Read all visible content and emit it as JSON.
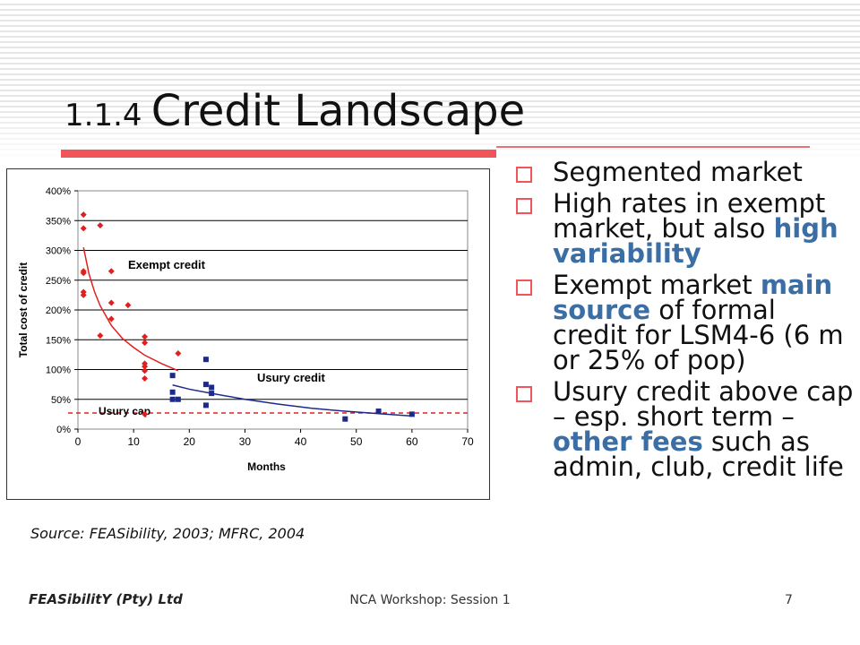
{
  "slide": {
    "title_number": "1.1.4",
    "title_text": "Credit Landscape",
    "bullets": [
      {
        "parts": [
          {
            "text": "Segmented market",
            "hl": false
          }
        ]
      },
      {
        "parts": [
          {
            "text": "High rates in exempt market, but also ",
            "hl": false
          },
          {
            "text": "high variability",
            "hl": true
          }
        ]
      },
      {
        "parts": [
          {
            "text": "Exempt market ",
            "hl": false
          },
          {
            "text": "main source",
            "hl": true
          },
          {
            "text": " of formal credit for LSM4-6 (6 m or 25% of pop)",
            "hl": false
          }
        ]
      },
      {
        "parts": [
          {
            "text": "Usury credit above cap – esp. short term – ",
            "hl": false
          },
          {
            "text": "other fees",
            "hl": true
          },
          {
            "text": " such as admin, club, credit life",
            "hl": false
          }
        ]
      }
    ],
    "source": "Source: FEASibility, 2003; MFRC, 2004",
    "footer_left": "FEASibilitY (Pty) Ltd",
    "footer_center": "NCA Workshop: Session 1",
    "page_number": "7"
  },
  "colors": {
    "accent_red": "#f0555a",
    "highlight_blue": "#3a6ea5",
    "exempt_series": "#e0201f",
    "usury_series": "#1c2a8c"
  },
  "chart_data": {
    "type": "scatter",
    "xlabel": "Months",
    "ylabel": "Total cost of credit",
    "xlim": [
      0,
      70
    ],
    "ylim": [
      0,
      400
    ],
    "x_ticks": [
      "0",
      "10",
      "20",
      "30",
      "40",
      "50",
      "60",
      "70"
    ],
    "y_ticks": [
      "0%",
      "50%",
      "100%",
      "150%",
      "200%",
      "250%",
      "300%",
      "350%",
      "400%"
    ],
    "grid": "horizontal",
    "series": [
      {
        "name": "Exempt credit",
        "marker": "diamond",
        "color": "#e0201f",
        "points": [
          [
            1,
            360
          ],
          [
            1,
            337
          ],
          [
            1,
            265
          ],
          [
            1,
            262
          ],
          [
            1,
            230
          ],
          [
            1,
            225
          ],
          [
            4,
            342
          ],
          [
            4,
            157
          ],
          [
            6,
            265
          ],
          [
            6,
            212
          ],
          [
            6,
            185
          ],
          [
            9,
            208
          ],
          [
            12,
            155
          ],
          [
            12,
            145
          ],
          [
            12,
            110
          ],
          [
            12,
            105
          ],
          [
            12,
            98
          ],
          [
            12,
            85
          ],
          [
            12,
            25
          ],
          [
            18,
            127
          ]
        ]
      },
      {
        "name": "Usury credit",
        "marker": "square",
        "color": "#1c2a8c",
        "points": [
          [
            17,
            90
          ],
          [
            17,
            62
          ],
          [
            17,
            50
          ],
          [
            18,
            50
          ],
          [
            23,
            117
          ],
          [
            23,
            75
          ],
          [
            23,
            40
          ],
          [
            24,
            70
          ],
          [
            24,
            60
          ],
          [
            48,
            17
          ],
          [
            54,
            30
          ],
          [
            60,
            25
          ]
        ]
      }
    ],
    "trendlines": [
      {
        "series": "Exempt credit",
        "color": "#e0201f",
        "points": [
          [
            1,
            305
          ],
          [
            2,
            260
          ],
          [
            3,
            230
          ],
          [
            4,
            207
          ],
          [
            6,
            174
          ],
          [
            8,
            152
          ],
          [
            10,
            137
          ],
          [
            12,
            124
          ],
          [
            15,
            110
          ],
          [
            18,
            98
          ]
        ]
      },
      {
        "series": "Usury credit",
        "color": "#1c2a8c",
        "points": [
          [
            17,
            74
          ],
          [
            20,
            67
          ],
          [
            24,
            60
          ],
          [
            30,
            50
          ],
          [
            36,
            42
          ],
          [
            42,
            35
          ],
          [
            48,
            30
          ],
          [
            54,
            26
          ],
          [
            60,
            22
          ]
        ]
      }
    ],
    "reference_lines": [
      {
        "label": "Usury cap",
        "y": 27,
        "color": "#e0201f",
        "style": "dashed"
      }
    ]
  }
}
